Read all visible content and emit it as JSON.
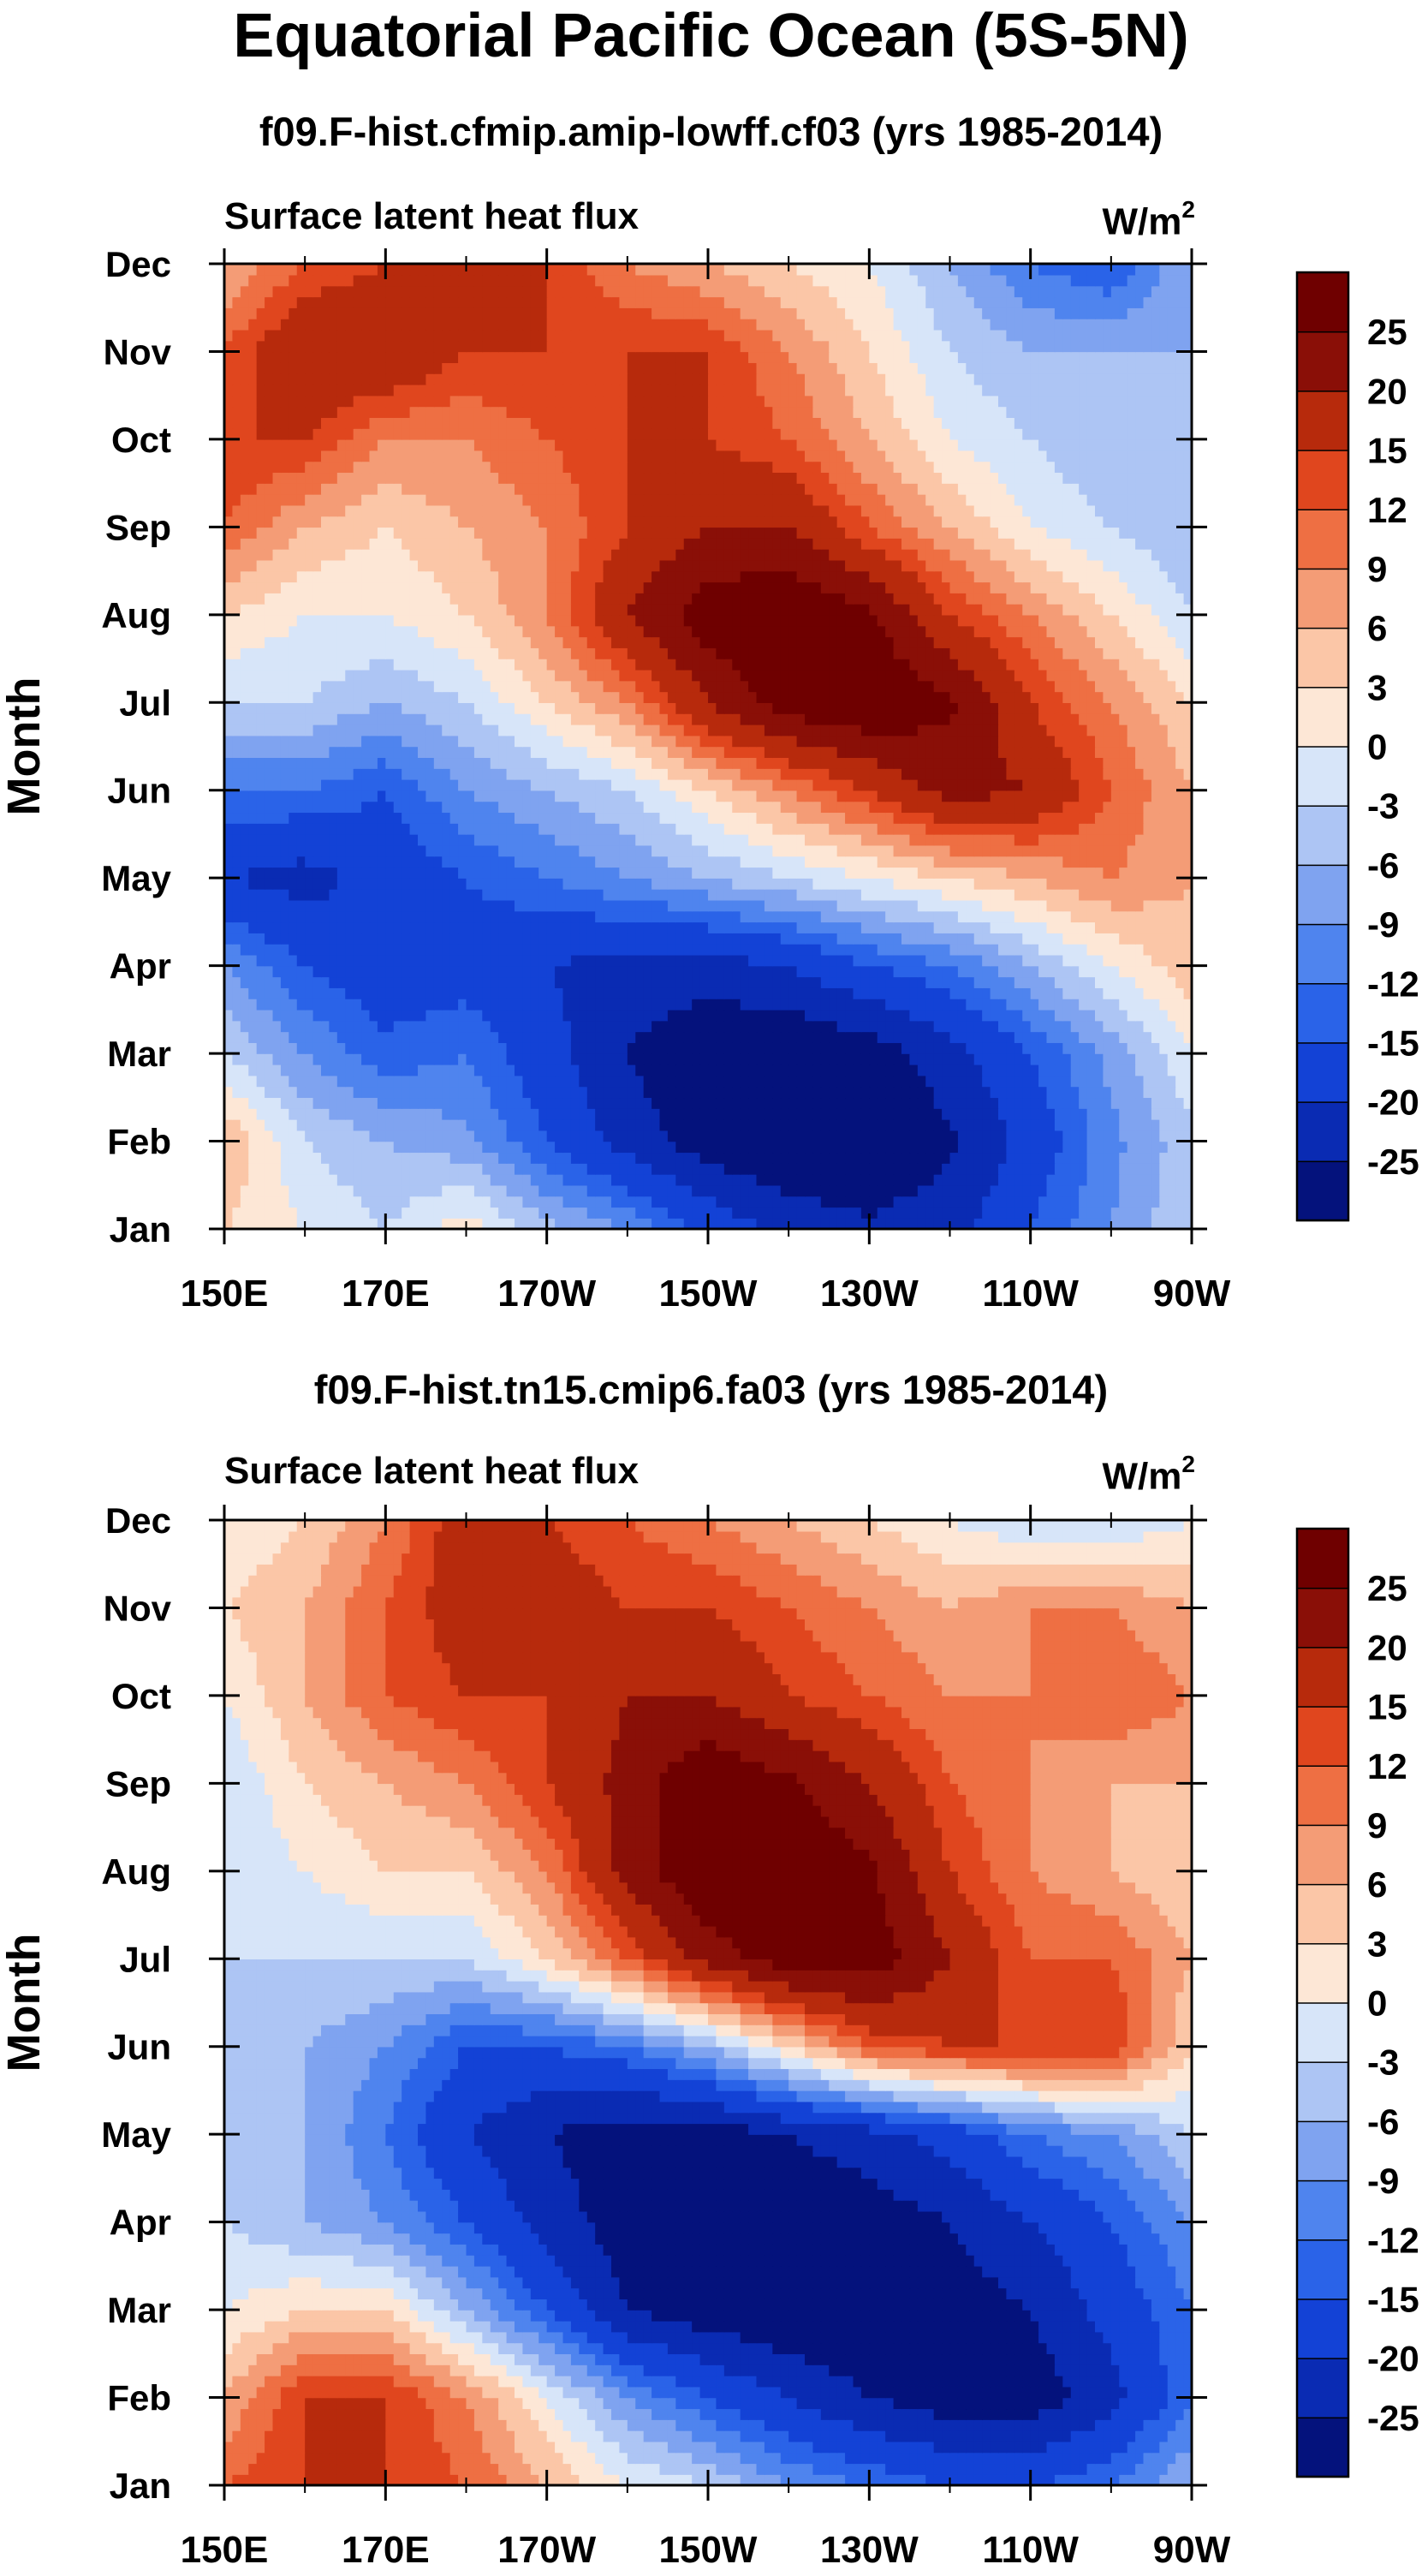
{
  "title": "Equatorial Pacific Ocean (5S-5N)",
  "chart_data": [
    {
      "type": "heatmap",
      "title": "f09.F-hist.cfmip.amip-lowff.cf03 (yrs 1985-2014)",
      "subtitle": "Surface latent heat flux",
      "units_base": "W/m",
      "units_exp": "2",
      "xlabel": "",
      "ylabel": "Month",
      "xlim": [
        150,
        270
      ],
      "ylim": [
        1,
        12
      ],
      "x_ticks": [
        150,
        170,
        190,
        210,
        230,
        250,
        270
      ],
      "x_tick_labels": [
        "150E",
        "170E",
        "170W",
        "150W",
        "130W",
        "110W",
        "90W"
      ],
      "y_tick_labels": [
        "Jan",
        "Feb",
        "Mar",
        "Apr",
        "May",
        "Jun",
        "Jul",
        "Aug",
        "Sep",
        "Oct",
        "Nov",
        "Dec"
      ],
      "x": [
        150,
        160,
        170,
        180,
        190,
        200,
        210,
        220,
        230,
        240,
        250,
        260,
        270
      ],
      "z": [
        [
          3,
          0,
          -3,
          2,
          -5,
          -9,
          -16,
          -22,
          -24,
          -22,
          -15,
          -9,
          -3
        ],
        [
          6,
          -3,
          -6,
          -8,
          -15,
          -22,
          -28,
          -30,
          -30,
          -26,
          -18,
          -10,
          -4
        ],
        [
          -3,
          -9,
          -14,
          -12,
          -18,
          -25,
          -30,
          -30,
          -28,
          -22,
          -15,
          -8,
          0
        ],
        [
          -9,
          -15,
          -18,
          -17,
          -20,
          -22,
          -22,
          -20,
          -15,
          -12,
          -6,
          0,
          5
        ],
        [
          -20,
          -22,
          -18,
          -15,
          -12,
          -9,
          -6,
          -3,
          0,
          3,
          6,
          9,
          6
        ],
        [
          -12,
          -12,
          -15,
          -9,
          -6,
          -3,
          3,
          9,
          15,
          22,
          20,
          12,
          6
        ],
        [
          -3,
          -3,
          -6,
          -3,
          3,
          9,
          20,
          28,
          30,
          26,
          15,
          9,
          3
        ],
        [
          3,
          0,
          0,
          3,
          9,
          20,
          28,
          30,
          26,
          15,
          9,
          3,
          -3
        ],
        [
          12,
          6,
          3,
          6,
          9,
          15,
          20,
          20,
          12,
          6,
          0,
          -3,
          -6
        ],
        [
          15,
          15,
          9,
          9,
          12,
          15,
          15,
          12,
          6,
          0,
          -3,
          -6,
          -6
        ],
        [
          12,
          20,
          20,
          15,
          15,
          15,
          15,
          9,
          3,
          -3,
          -6,
          -6,
          -6
        ],
        [
          6,
          12,
          15,
          15,
          15,
          9,
          6,
          3,
          0,
          -6,
          -12,
          -15,
          -6
        ]
      ],
      "colorbar": {
        "labels": [
          "25",
          "20",
          "15",
          "12",
          "9",
          "6",
          "3",
          "0",
          "-3",
          "-6",
          "-9",
          "-12",
          "-15",
          "-20",
          "-25"
        ],
        "levels": [
          -25,
          -20,
          -15,
          -12,
          -9,
          -6,
          -3,
          0,
          3,
          6,
          9,
          12,
          15,
          20,
          25
        ]
      }
    },
    {
      "type": "heatmap",
      "title": "f09.F-hist.tn15.cmip6.fa03 (yrs 1985-2014)",
      "subtitle": "Surface latent heat flux",
      "units_base": "W/m",
      "units_exp": "2",
      "xlabel": "",
      "ylabel": "Month",
      "xlim": [
        150,
        270
      ],
      "ylim": [
        1,
        12
      ],
      "x_ticks": [
        150,
        170,
        190,
        210,
        230,
        250,
        270
      ],
      "x_tick_labels": [
        "150E",
        "170E",
        "170W",
        "150W",
        "130W",
        "110W",
        "90W"
      ],
      "y_tick_labels": [
        "Jan",
        "Feb",
        "Mar",
        "Apr",
        "May",
        "Jun",
        "Jul",
        "Aug",
        "Sep",
        "Oct",
        "Nov",
        "Dec"
      ],
      "x": [
        150,
        160,
        170,
        180,
        190,
        200,
        210,
        220,
        230,
        240,
        250,
        260,
        270
      ],
      "z": [
        [
          12,
          15,
          15,
          12,
          6,
          0,
          -3,
          -9,
          -12,
          -15,
          -15,
          -12,
          -6
        ],
        [
          6,
          15,
          15,
          9,
          0,
          -9,
          -15,
          -20,
          -25,
          -28,
          -28,
          -22,
          -12
        ],
        [
          0,
          3,
          3,
          -6,
          -15,
          -25,
          -28,
          -30,
          -30,
          -28,
          -25,
          -18,
          -12
        ],
        [
          -3,
          -6,
          -9,
          -15,
          -22,
          -28,
          -30,
          -30,
          -28,
          -25,
          -20,
          -15,
          -9
        ],
        [
          -6,
          -6,
          -12,
          -20,
          -25,
          -28,
          -28,
          -25,
          -22,
          -18,
          -12,
          -9,
          -3
        ],
        [
          -6,
          -6,
          -9,
          -15,
          -15,
          -12,
          -6,
          3,
          12,
          15,
          15,
          15,
          3
        ],
        [
          -3,
          -3,
          -3,
          -3,
          3,
          12,
          22,
          28,
          28,
          20,
          12,
          12,
          6
        ],
        [
          -3,
          0,
          3,
          3,
          9,
          22,
          30,
          30,
          26,
          15,
          9,
          6,
          3
        ],
        [
          -3,
          3,
          6,
          9,
          15,
          22,
          30,
          26,
          20,
          12,
          9,
          6,
          6
        ],
        [
          0,
          6,
          12,
          15,
          15,
          20,
          20,
          15,
          12,
          9,
          9,
          12,
          9
        ],
        [
          3,
          6,
          12,
          18,
          18,
          15,
          15,
          12,
          9,
          6,
          9,
          9,
          6
        ],
        [
          0,
          3,
          9,
          18,
          15,
          12,
          9,
          6,
          3,
          0,
          -3,
          -3,
          0
        ]
      ],
      "colorbar": {
        "labels": [
          "25",
          "20",
          "15",
          "12",
          "9",
          "6",
          "3",
          "0",
          "-3",
          "-6",
          "-9",
          "-12",
          "-15",
          "-20",
          "-25"
        ],
        "levels": [
          -25,
          -20,
          -15,
          -12,
          -9,
          -6,
          -3,
          0,
          3,
          6,
          9,
          12,
          15,
          20,
          25
        ]
      }
    }
  ],
  "palette": [
    "#04127c",
    "#0a2bb3",
    "#1342d6",
    "#2a63e8",
    "#4f84ee",
    "#7fa3f0",
    "#adc5f4",
    "#d7e5f9",
    "#fde7d6",
    "#fbc6a7",
    "#f49c76",
    "#ee6f43",
    "#e0461e",
    "#b72a0c",
    "#8a0f07",
    "#6f0000"
  ]
}
